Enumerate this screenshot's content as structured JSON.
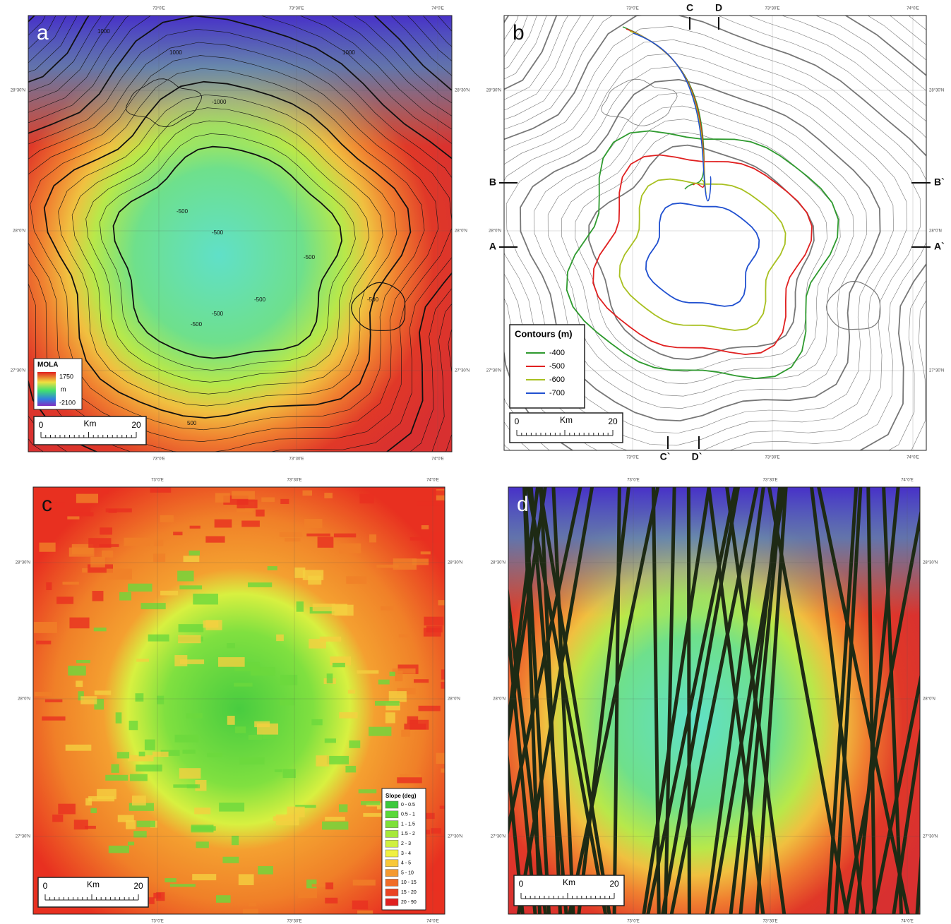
{
  "graticule": {
    "lon": [
      "73°0'E",
      "73°30'E",
      "74°0'E"
    ],
    "lat": [
      "28°30'N",
      "28°0'N",
      "27°30'N"
    ]
  },
  "panels": [
    {
      "label": "a",
      "legend": {
        "title": "MOLA",
        "max": "1750",
        "unit": "m",
        "min": "-2100"
      },
      "scale_bar": {
        "start": "0",
        "unit": "Km",
        "end": "20"
      },
      "contour_labels": [
        "1000",
        "1000",
        "1000",
        "-1000",
        "-500",
        "-500",
        "-500",
        "-500",
        "-500",
        "-500",
        "-500",
        "500"
      ]
    },
    {
      "label": "b",
      "legend": {
        "title": "Contours (m)",
        "items": [
          {
            "label": "-400",
            "color": "#2e9a2e"
          },
          {
            "label": "-500",
            "color": "#e02020"
          },
          {
            "label": "-600",
            "color": "#a8c020"
          },
          {
            "label": "-700",
            "color": "#2050d0"
          }
        ]
      },
      "scale_bar": {
        "start": "0",
        "unit": "Km",
        "end": "20"
      },
      "profiles": [
        "A",
        "A`",
        "B",
        "B`",
        "C",
        "C`",
        "D",
        "D`"
      ]
    },
    {
      "label": "c",
      "legend": {
        "title": "Slope (deg)",
        "items": [
          {
            "label": "0 - 0.5",
            "color": "#3cc83c"
          },
          {
            "label": "0.5 - 1",
            "color": "#5ad83a"
          },
          {
            "label": "1 - 1.5",
            "color": "#7ee03a"
          },
          {
            "label": "1.5 - 2",
            "color": "#a6e83a"
          },
          {
            "label": "2 - 3",
            "color": "#d0f040"
          },
          {
            "label": "3 - 4",
            "color": "#f0f040"
          },
          {
            "label": "4 - 5",
            "color": "#f8c838"
          },
          {
            "label": "5 - 10",
            "color": "#f49a30"
          },
          {
            "label": "10 - 15",
            "color": "#f06c28"
          },
          {
            "label": "15 - 20",
            "color": "#ea4424"
          },
          {
            "label": "20 - 90",
            "color": "#e02020"
          }
        ]
      },
      "scale_bar": {
        "start": "0",
        "unit": "Km",
        "end": "20"
      }
    },
    {
      "label": "d",
      "scale_bar": {
        "start": "0",
        "unit": "Km",
        "end": "20"
      }
    }
  ]
}
